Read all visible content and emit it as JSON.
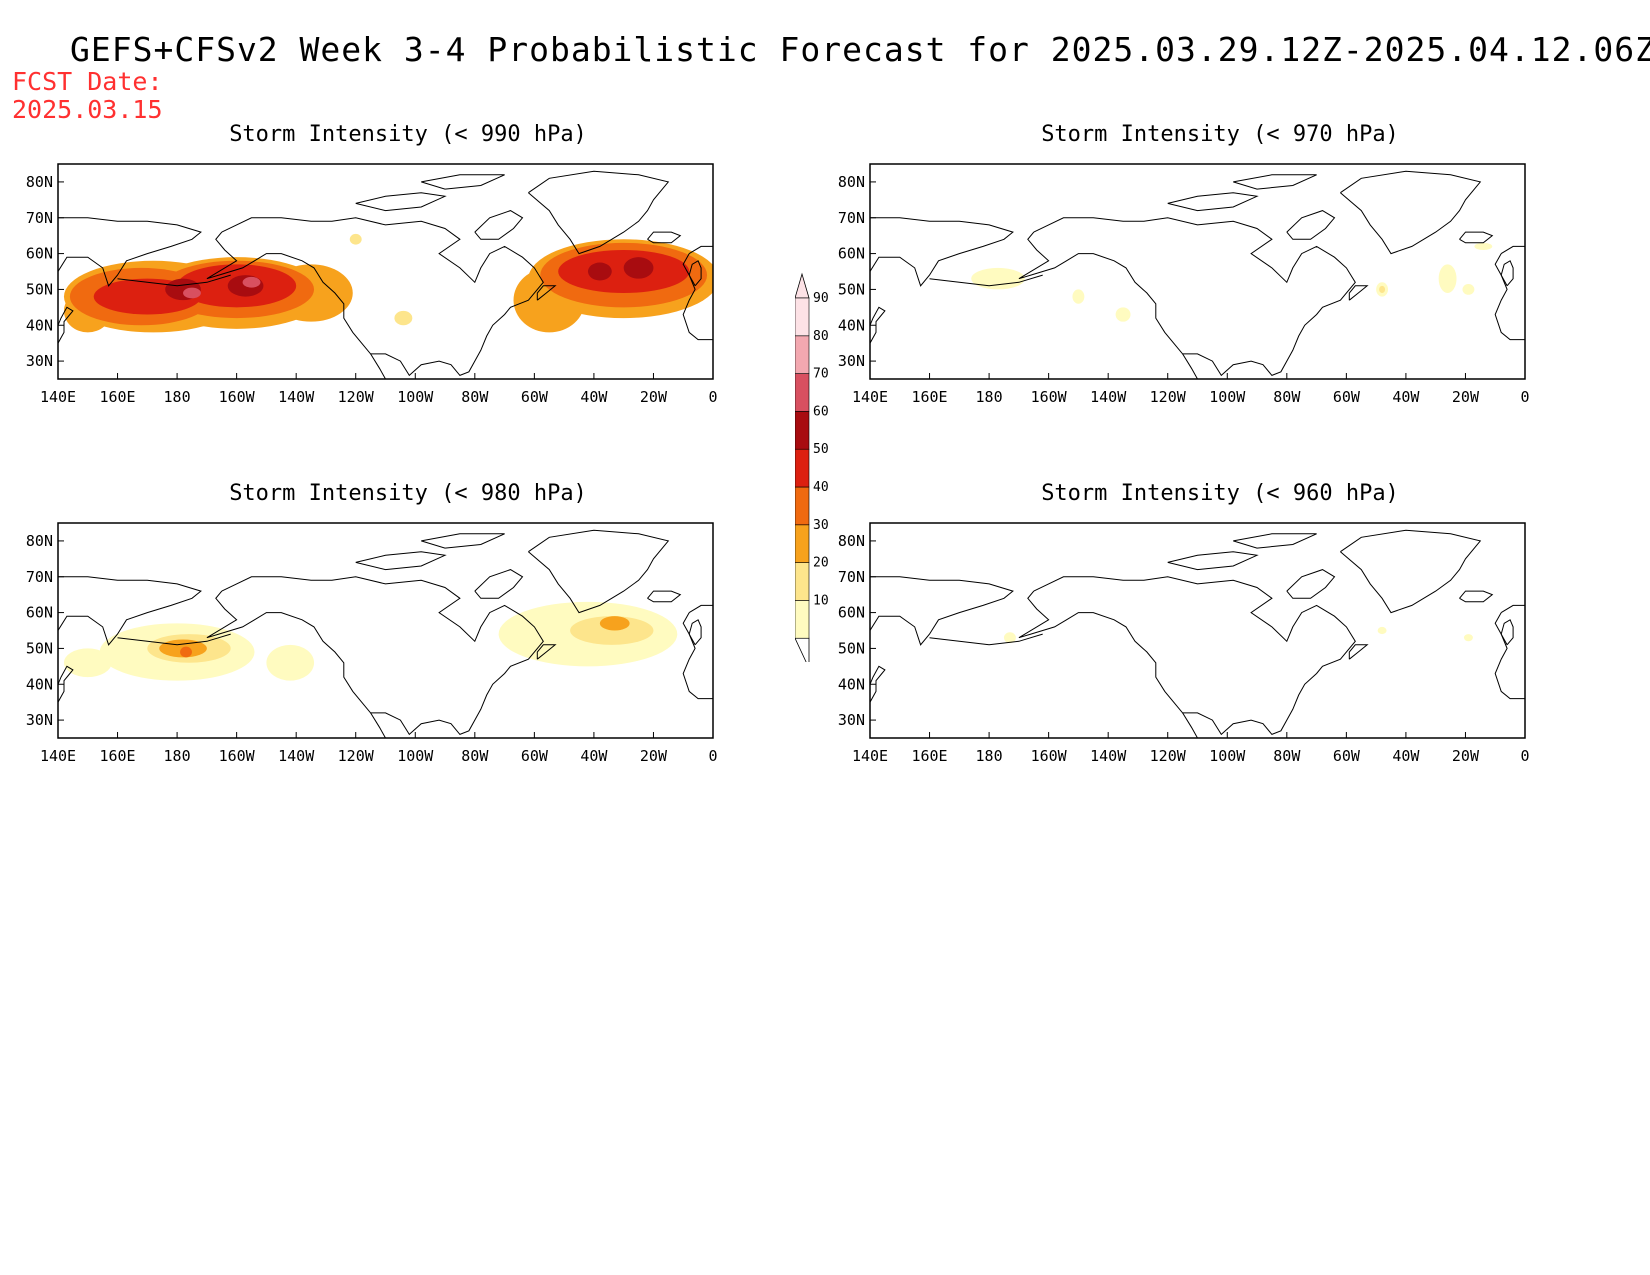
{
  "title": "GEFS+CFSv2 Week 3-4 Probabilistic Forecast for 2025.03.29.12Z-2025.04.12.06Z",
  "fcst_date_label": "FCST Date:",
  "fcst_date_value": "2025.03.15",
  "x_ticks": [
    "140E",
    "160E",
    "180",
    "160W",
    "140W",
    "120W",
    "100W",
    "80W",
    "60W",
    "40W",
    "20W",
    "0"
  ],
  "y_ticks": [
    "80N",
    "70N",
    "60N",
    "50N",
    "40N",
    "30N"
  ],
  "lon_range": [
    140,
    360
  ],
  "lat_range": [
    25,
    85
  ],
  "colorbar": {
    "levels": [
      "10",
      "20",
      "30",
      "40",
      "50",
      "60",
      "70",
      "80",
      "90"
    ],
    "colors": [
      "#fffbc0",
      "#fde58c",
      "#f7a21d",
      "#f06a10",
      "#dc2010",
      "#a80c10",
      "#d85060",
      "#f3a8b0",
      "#fde2e6"
    ]
  },
  "panels": [
    {
      "id": "p990",
      "title": "Storm Intensity (< 990 hPa)",
      "blobs": [
        {
          "lon": 172,
          "lat": 48,
          "rx": 30,
          "ry": 10,
          "level": 3
        },
        {
          "lon": 200,
          "lat": 49,
          "rx": 30,
          "ry": 10,
          "level": 3
        },
        {
          "lon": 225,
          "lat": 49,
          "rx": 14,
          "ry": 8,
          "level": 3
        },
        {
          "lon": 150,
          "lat": 44,
          "rx": 8,
          "ry": 6,
          "level": 3
        },
        {
          "lon": 330,
          "lat": 53,
          "rx": 32,
          "ry": 11,
          "level": 3
        },
        {
          "lon": 305,
          "lat": 47,
          "rx": 12,
          "ry": 9,
          "level": 3
        },
        {
          "lon": 168,
          "lat": 48,
          "rx": 24,
          "ry": 8,
          "level": 4
        },
        {
          "lon": 200,
          "lat": 50,
          "rx": 26,
          "ry": 8,
          "level": 4
        },
        {
          "lon": 330,
          "lat": 54,
          "rx": 28,
          "ry": 9,
          "level": 4
        },
        {
          "lon": 170,
          "lat": 48,
          "rx": 18,
          "ry": 5,
          "level": 5
        },
        {
          "lon": 200,
          "lat": 51,
          "rx": 20,
          "ry": 6,
          "level": 5
        },
        {
          "lon": 330,
          "lat": 55,
          "rx": 22,
          "ry": 6,
          "level": 5
        },
        {
          "lon": 182,
          "lat": 50,
          "rx": 6,
          "ry": 3,
          "level": 6
        },
        {
          "lon": 203,
          "lat": 51,
          "rx": 6,
          "ry": 3,
          "level": 6
        },
        {
          "lon": 335,
          "lat": 56,
          "rx": 5,
          "ry": 3,
          "level": 6
        },
        {
          "lon": 322,
          "lat": 55,
          "rx": 4,
          "ry": 2.5,
          "level": 6
        },
        {
          "lon": 185,
          "lat": 49,
          "rx": 3,
          "ry": 1.5,
          "level": 7
        },
        {
          "lon": 205,
          "lat": 52,
          "rx": 3,
          "ry": 1.5,
          "level": 7
        },
        {
          "lon": 256,
          "lat": 42,
          "rx": 3,
          "ry": 2,
          "level": 2
        },
        {
          "lon": 240,
          "lat": 64,
          "rx": 2,
          "ry": 1.5,
          "level": 2
        }
      ]
    },
    {
      "id": "p970",
      "title": "Storm Intensity (< 970 hPa)",
      "blobs": [
        {
          "lon": 183,
          "lat": 53,
          "rx": 9,
          "ry": 3,
          "level": 1
        },
        {
          "lon": 210,
          "lat": 48,
          "rx": 2,
          "ry": 2,
          "level": 1
        },
        {
          "lon": 225,
          "lat": 43,
          "rx": 2.5,
          "ry": 2,
          "level": 1
        },
        {
          "lon": 312,
          "lat": 50,
          "rx": 2,
          "ry": 2,
          "level": 1
        },
        {
          "lon": 334,
          "lat": 53,
          "rx": 3,
          "ry": 4,
          "level": 1
        },
        {
          "lon": 341,
          "lat": 50,
          "rx": 2,
          "ry": 1.5,
          "level": 1
        },
        {
          "lon": 346,
          "lat": 62,
          "rx": 3,
          "ry": 1,
          "level": 1
        },
        {
          "lon": 312,
          "lat": 50,
          "rx": 1,
          "ry": 1,
          "level": 2
        }
      ]
    },
    {
      "id": "p980",
      "title": "Storm Intensity (< 980 hPa)",
      "blobs": [
        {
          "lon": 180,
          "lat": 49,
          "rx": 26,
          "ry": 8,
          "level": 1
        },
        {
          "lon": 150,
          "lat": 46,
          "rx": 8,
          "ry": 4,
          "level": 1
        },
        {
          "lon": 318,
          "lat": 54,
          "rx": 30,
          "ry": 9,
          "level": 1
        },
        {
          "lon": 218,
          "lat": 46,
          "rx": 8,
          "ry": 5,
          "level": 1
        },
        {
          "lon": 184,
          "lat": 50,
          "rx": 14,
          "ry": 4,
          "level": 2
        },
        {
          "lon": 326,
          "lat": 55,
          "rx": 14,
          "ry": 4,
          "level": 2
        },
        {
          "lon": 182,
          "lat": 50,
          "rx": 8,
          "ry": 2.5,
          "level": 3
        },
        {
          "lon": 327,
          "lat": 57,
          "rx": 5,
          "ry": 2,
          "level": 3
        },
        {
          "lon": 183,
          "lat": 49,
          "rx": 2,
          "ry": 1.5,
          "level": 4
        }
      ]
    },
    {
      "id": "p960",
      "title": "Storm Intensity (< 960 hPa)",
      "blobs": [
        {
          "lon": 187,
          "lat": 53,
          "rx": 2,
          "ry": 1.5,
          "level": 1
        },
        {
          "lon": 312,
          "lat": 55,
          "rx": 1.5,
          "ry": 1,
          "level": 1
        },
        {
          "lon": 341,
          "lat": 53,
          "rx": 1.5,
          "ry": 1,
          "level": 1
        }
      ]
    }
  ]
}
